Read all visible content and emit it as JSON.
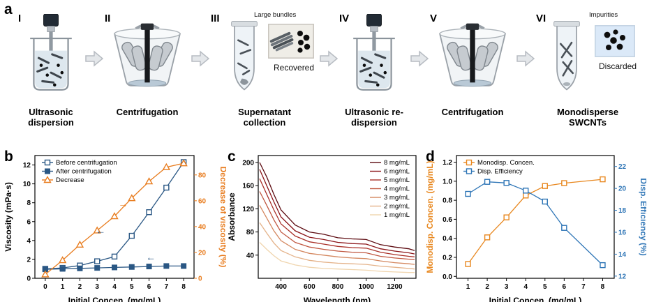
{
  "figure": {
    "panel_labels": {
      "a": "a",
      "b": "b",
      "c": "c",
      "d": "d"
    }
  },
  "process": {
    "steps": [
      {
        "numeral": "I",
        "name": "Ultrasonic dispersion"
      },
      {
        "numeral": "II",
        "name": "Centrifugation"
      },
      {
        "numeral": "III",
        "name": "Supernatant collection",
        "callout_top": "Large bundles",
        "callout_bottom": "Recovered"
      },
      {
        "numeral": "IV",
        "name": "Ultrasonic re-dispersion"
      },
      {
        "numeral": "V",
        "name": "Centrifugation"
      },
      {
        "numeral": "VI",
        "name": "Monodisperse SWCNTs",
        "callout_top": "Impurities",
        "callout_bottom": "Discarded"
      }
    ]
  },
  "chart_data": [
    {
      "type": "line",
      "xlabel": "Initial Concen. (mg/mL)",
      "ylabel_left": "Viscosity (mPa·s)",
      "ylabel_right": "Decrease of viscosity (%)",
      "xlim": [
        -0.6,
        8.6
      ],
      "xticks": [
        "0",
        "1",
        "2",
        "3",
        "4",
        "5",
        "6",
        "7",
        "8"
      ],
      "ylim_left": [
        0,
        13
      ],
      "yticks_left": [
        "0",
        "2",
        "4",
        "6",
        "8",
        "10",
        "12"
      ],
      "ylim_right": [
        0,
        95
      ],
      "yticks_right": [
        "0",
        "20",
        "40",
        "60",
        "80"
      ],
      "left_label_color": "#000000",
      "right_color": "#e87c1e",
      "right_label_color": "#e87c1e",
      "legend": {
        "pos": "tl",
        "w": 110
      },
      "series": [
        {
          "name": "Before centrifugation",
          "axis": "left",
          "marker": "square-open",
          "color": "#2a5784",
          "x": [
            0,
            1,
            2,
            3,
            4,
            5,
            6,
            7,
            8
          ],
          "y": [
            1.0,
            1.1,
            1.35,
            1.8,
            2.3,
            4.5,
            7.0,
            9.6,
            12.3
          ]
        },
        {
          "name": "After centrifugation",
          "axis": "left",
          "marker": "square-filled",
          "color": "#2a5784",
          "x": [
            0,
            1,
            2,
            3,
            4,
            5,
            6,
            7,
            8
          ],
          "y": [
            0.95,
            1.0,
            1.05,
            1.1,
            1.15,
            1.2,
            1.25,
            1.3,
            1.3
          ]
        },
        {
          "name": "Decrease",
          "axis": "right",
          "marker": "triangle-open",
          "color": "#e87c1e",
          "x": [
            0,
            1,
            2,
            3,
            4,
            5,
            6,
            7,
            8
          ],
          "y": [
            3,
            14,
            26,
            37,
            48,
            62,
            75,
            86,
            89
          ]
        }
      ],
      "annotations": [
        {
          "x": 4.5,
          "y": 55,
          "axis": "right",
          "text": "→",
          "color": "#e87c1e"
        },
        {
          "x": 3.2,
          "y": 4.7,
          "axis": "left",
          "text": "←",
          "color": "#2a5784"
        },
        {
          "x": 6.1,
          "y": 1.9,
          "axis": "left",
          "text": "←",
          "color": "#2a5784"
        }
      ]
    },
    {
      "type": "line",
      "xlabel": "Wavelength (nm)",
      "ylabel_left": "Absorbance",
      "xlim": [
        240,
        1350
      ],
      "xticks": [
        "400",
        "600",
        "800",
        "1000",
        "1200"
      ],
      "ylim_left": [
        0,
        212
      ],
      "yticks_left": [
        "40",
        "80",
        "120",
        "160",
        "200"
      ],
      "legend": {
        "pos": "tr",
        "w": 66
      },
      "x": [
        250,
        300,
        350,
        400,
        500,
        600,
        700,
        800,
        900,
        1000,
        1100,
        1200,
        1300,
        1340
      ],
      "series": [
        {
          "name": "8 mg/mL",
          "axis": "left",
          "marker": "none",
          "color": "#5c0a10",
          "y": [
            200,
            175,
            145,
            118,
            92,
            80,
            76,
            70,
            68,
            67,
            58,
            54,
            51,
            48
          ]
        },
        {
          "name": "6 mg/mL",
          "axis": "left",
          "marker": "none",
          "color": "#8a1317",
          "y": [
            188,
            160,
            132,
            106,
            82,
            71,
            67,
            62,
            60,
            59,
            51,
            47,
            44,
            42
          ]
        },
        {
          "name": "5 mg/mL",
          "axis": "left",
          "marker": "none",
          "color": "#a93028",
          "y": [
            172,
            145,
            118,
            94,
            73,
            63,
            59,
            55,
            53,
            52,
            45,
            41,
            38,
            37
          ]
        },
        {
          "name": "4 mg/mL",
          "axis": "left",
          "marker": "none",
          "color": "#c05740",
          "y": [
            150,
            126,
            101,
            80,
            62,
            54,
            50,
            47,
            45,
            44,
            38,
            35,
            33,
            32
          ]
        },
        {
          "name": "3 mg/mL",
          "axis": "left",
          "marker": "none",
          "color": "#d4875f",
          "y": [
            126,
            104,
            82,
            65,
            50,
            43,
            40,
            37,
            35,
            34,
            30,
            27,
            25,
            24
          ]
        },
        {
          "name": "2 mg/mL",
          "axis": "left",
          "marker": "none",
          "color": "#e4b289",
          "y": [
            96,
            78,
            61,
            48,
            37,
            31,
            28,
            26,
            25,
            24,
            21,
            19,
            17,
            16
          ]
        },
        {
          "name": "1 mg/mL",
          "axis": "left",
          "marker": "none",
          "color": "#f0d5ae",
          "y": [
            62,
            50,
            39,
            30,
            23,
            19,
            17,
            16,
            15,
            14,
            12,
            11,
            10,
            10
          ]
        }
      ]
    },
    {
      "type": "line",
      "xlabel": "Initial Concen. (mg/mL)",
      "ylabel_left": "Monodisp. Concen. (mg/mL)",
      "ylabel_right": "Disp. Efficiency (%)",
      "xlim": [
        0.4,
        8.6
      ],
      "xticks": [
        "1",
        "2",
        "3",
        "4",
        "5",
        "6",
        "7",
        "8"
      ],
      "ylim_left": [
        -0.02,
        1.27
      ],
      "yticks_left": [
        "0.0",
        "0.2",
        "0.4",
        "0.6",
        "0.8",
        "1.0",
        "1.2"
      ],
      "ylim_right": [
        11.8,
        23
      ],
      "yticks_right": [
        "12",
        "14",
        "16",
        "18",
        "20",
        "22"
      ],
      "left_label_color": "#e8871e",
      "right_color": "#2e75b6",
      "right_label_color": "#2e75b6",
      "legend": {
        "pos": "tl",
        "w": 100
      },
      "series": [
        {
          "name": "Monodisp. Concen.",
          "axis": "left",
          "marker": "square-open",
          "color": "#e8871e",
          "x": [
            1,
            2,
            3,
            4,
            5,
            6,
            8
          ],
          "y": [
            0.13,
            0.41,
            0.62,
            0.85,
            0.95,
            0.98,
            1.02
          ]
        },
        {
          "name": "Disp. Efficiency",
          "axis": "right",
          "marker": "square-open",
          "color": "#2e75b6",
          "x": [
            1,
            2,
            3,
            4,
            5,
            6,
            8
          ],
          "y": [
            19.5,
            20.6,
            20.5,
            19.8,
            18.8,
            16.4,
            13.0
          ]
        }
      ]
    }
  ]
}
